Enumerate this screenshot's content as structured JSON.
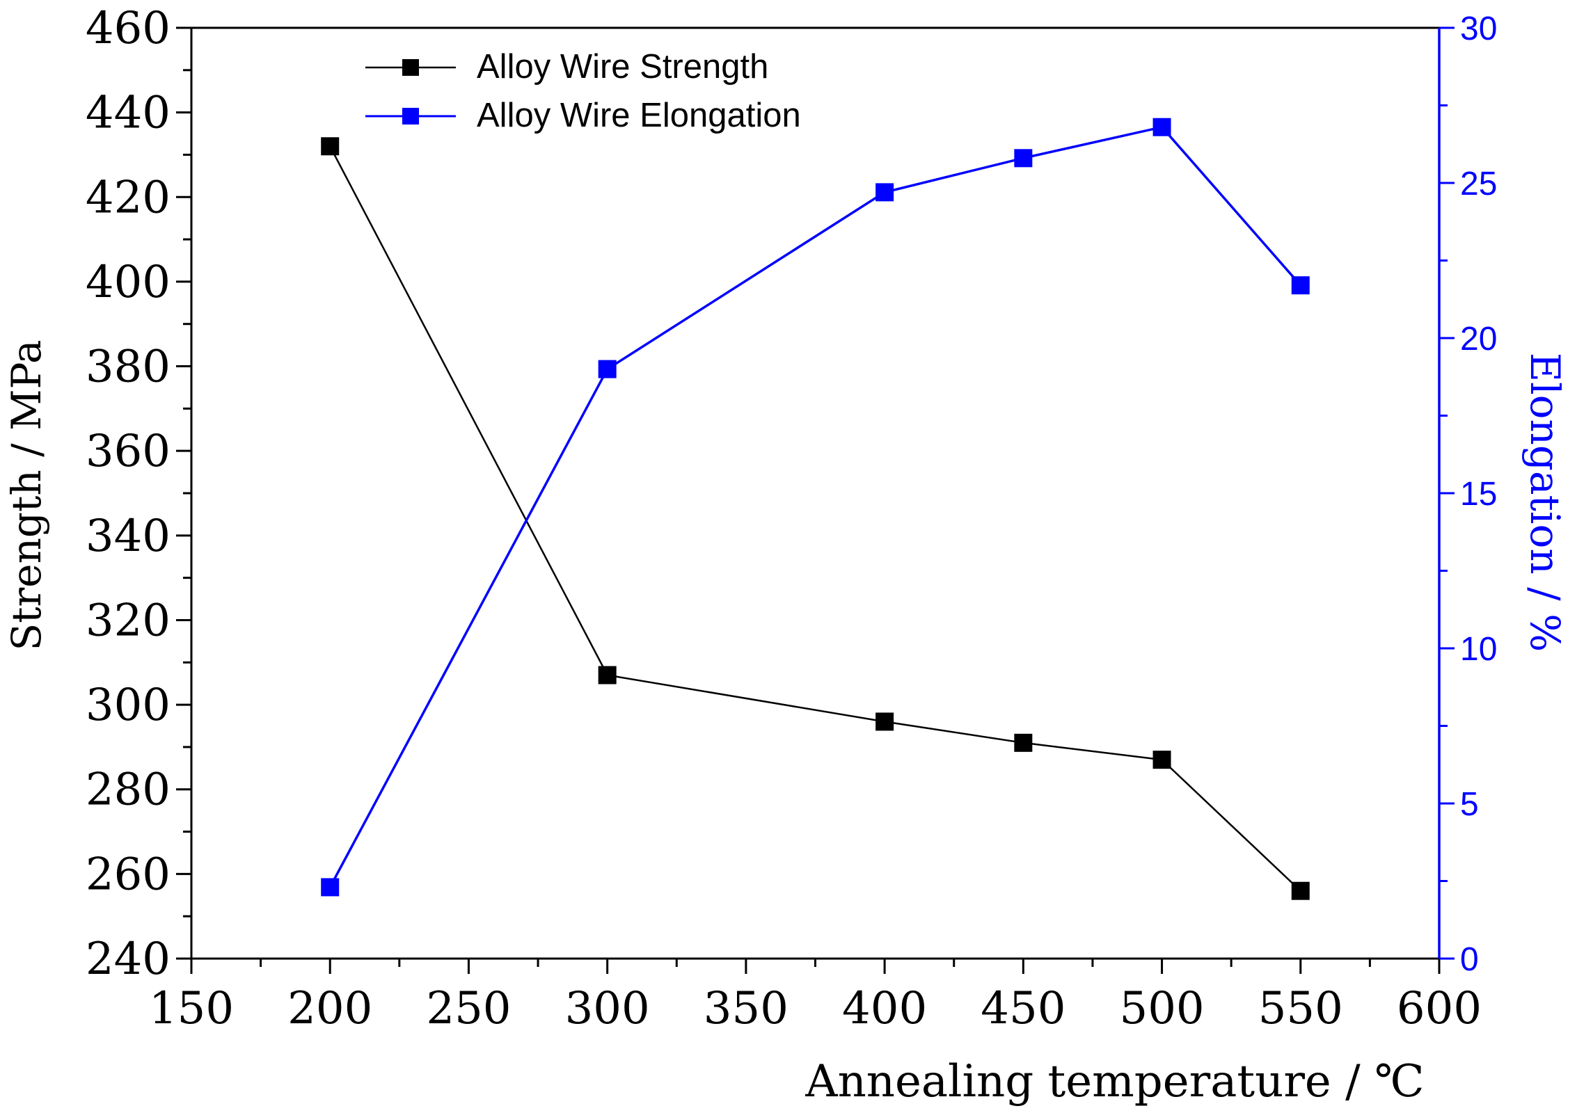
{
  "chart_data": {
    "type": "line",
    "title": "",
    "x": [
      200,
      300,
      400,
      450,
      500,
      550
    ],
    "xlabel": "Annealing temperature / ℃",
    "xlim": [
      150,
      600
    ],
    "x_ticks": [
      150,
      200,
      250,
      300,
      350,
      400,
      450,
      500,
      550,
      600
    ],
    "x_tick_labels": [
      "150",
      "200",
      "250",
      "300",
      "350",
      "400",
      "450",
      "500",
      "550",
      "600"
    ],
    "ylabel_left": "Strength / MPa",
    "ylim_left": [
      240,
      460
    ],
    "y_ticks_left": [
      240,
      260,
      280,
      300,
      320,
      340,
      360,
      380,
      400,
      420,
      440,
      460
    ],
    "y_tick_labels_left": [
      "240",
      "260",
      "280",
      "300",
      "320",
      "340",
      "360",
      "380",
      "400",
      "420",
      "440",
      "460"
    ],
    "ylabel_right": "Elongation / %",
    "ylim_right": [
      0,
      30
    ],
    "y_ticks_right": [
      0,
      5,
      10,
      15,
      20,
      25,
      30
    ],
    "y_tick_labels_right": [
      "0",
      "5",
      "10",
      "15",
      "20",
      "25",
      "30"
    ],
    "series": [
      {
        "name": "Alloy Wire Strength",
        "axis": "left",
        "color": "#000000",
        "marker": "square",
        "values": [
          432,
          307,
          296,
          291,
          287,
          256
        ]
      },
      {
        "name": "Alloy Wire Elongation",
        "axis": "right",
        "color": "#0000ff",
        "marker": "square",
        "values": [
          2.3,
          19.0,
          24.7,
          25.8,
          26.8,
          21.7
        ]
      }
    ],
    "legend_position": "top-left",
    "grid": false
  }
}
